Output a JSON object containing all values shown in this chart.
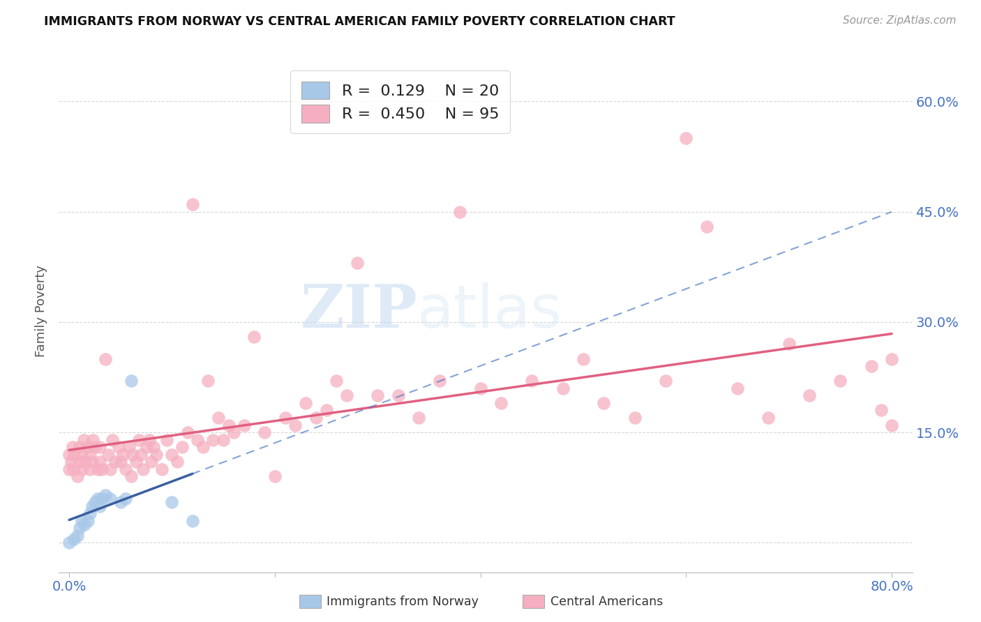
{
  "title": "IMMIGRANTS FROM NORWAY VS CENTRAL AMERICAN FAMILY POVERTY CORRELATION CHART",
  "source": "Source: ZipAtlas.com",
  "tick_color": "#4472c4",
  "ylabel": "Family Poverty",
  "xlim": [
    -0.01,
    0.82
  ],
  "ylim": [
    -0.04,
    0.67
  ],
  "norway_color": "#a8c8e8",
  "norway_line_color": "#4472c4",
  "norway_line_solid_color": "#3a5fa0",
  "central_color": "#f5afc0",
  "central_line_color": "#e06080",
  "norway_R": 0.129,
  "norway_N": 20,
  "central_R": 0.45,
  "central_N": 95,
  "background_color": "#ffffff",
  "grid_color": "#cccccc",
  "ytick_positions": [
    0.0,
    0.15,
    0.3,
    0.45,
    0.6
  ],
  "xtick_positions": [
    0.0,
    0.2,
    0.4,
    0.6,
    0.8
  ],
  "norway_x": [
    0.0,
    0.005,
    0.008,
    0.01,
    0.012,
    0.015,
    0.018,
    0.02,
    0.022,
    0.025,
    0.028,
    0.03,
    0.032,
    0.035,
    0.04,
    0.05,
    0.055,
    0.06,
    0.1,
    0.12
  ],
  "norway_y": [
    0.0,
    0.005,
    0.01,
    0.02,
    0.03,
    0.025,
    0.03,
    0.04,
    0.05,
    0.055,
    0.06,
    0.05,
    0.06,
    0.065,
    0.06,
    0.055,
    0.06,
    0.22,
    0.055,
    0.03
  ],
  "central_x": [
    0.0,
    0.0,
    0.002,
    0.003,
    0.004,
    0.005,
    0.008,
    0.01,
    0.01,
    0.012,
    0.013,
    0.014,
    0.015,
    0.018,
    0.02,
    0.02,
    0.022,
    0.023,
    0.025,
    0.028,
    0.03,
    0.03,
    0.032,
    0.035,
    0.038,
    0.04,
    0.042,
    0.045,
    0.048,
    0.05,
    0.052,
    0.055,
    0.058,
    0.06,
    0.062,
    0.065,
    0.068,
    0.07,
    0.072,
    0.075,
    0.078,
    0.08,
    0.082,
    0.085,
    0.09,
    0.095,
    0.1,
    0.105,
    0.11,
    0.115,
    0.12,
    0.125,
    0.13,
    0.135,
    0.14,
    0.145,
    0.15,
    0.155,
    0.16,
    0.17,
    0.18,
    0.19,
    0.2,
    0.21,
    0.22,
    0.23,
    0.24,
    0.25,
    0.26,
    0.27,
    0.28,
    0.3,
    0.32,
    0.34,
    0.36,
    0.38,
    0.4,
    0.42,
    0.45,
    0.48,
    0.5,
    0.52,
    0.55,
    0.58,
    0.6,
    0.62,
    0.65,
    0.68,
    0.7,
    0.72,
    0.75,
    0.78,
    0.79,
    0.8,
    0.8
  ],
  "central_y": [
    0.1,
    0.12,
    0.11,
    0.13,
    0.1,
    0.12,
    0.09,
    0.11,
    0.13,
    0.12,
    0.1,
    0.14,
    0.11,
    0.13,
    0.1,
    0.12,
    0.11,
    0.14,
    0.13,
    0.1,
    0.11,
    0.13,
    0.1,
    0.25,
    0.12,
    0.1,
    0.14,
    0.11,
    0.13,
    0.11,
    0.12,
    0.1,
    0.13,
    0.09,
    0.12,
    0.11,
    0.14,
    0.12,
    0.1,
    0.13,
    0.14,
    0.11,
    0.13,
    0.12,
    0.1,
    0.14,
    0.12,
    0.11,
    0.13,
    0.15,
    0.46,
    0.14,
    0.13,
    0.22,
    0.14,
    0.17,
    0.14,
    0.16,
    0.15,
    0.16,
    0.28,
    0.15,
    0.09,
    0.17,
    0.16,
    0.19,
    0.17,
    0.18,
    0.22,
    0.2,
    0.38,
    0.2,
    0.2,
    0.17,
    0.22,
    0.45,
    0.21,
    0.19,
    0.22,
    0.21,
    0.25,
    0.19,
    0.17,
    0.22,
    0.55,
    0.43,
    0.21,
    0.17,
    0.27,
    0.2,
    0.22,
    0.24,
    0.18,
    0.25,
    0.16
  ]
}
